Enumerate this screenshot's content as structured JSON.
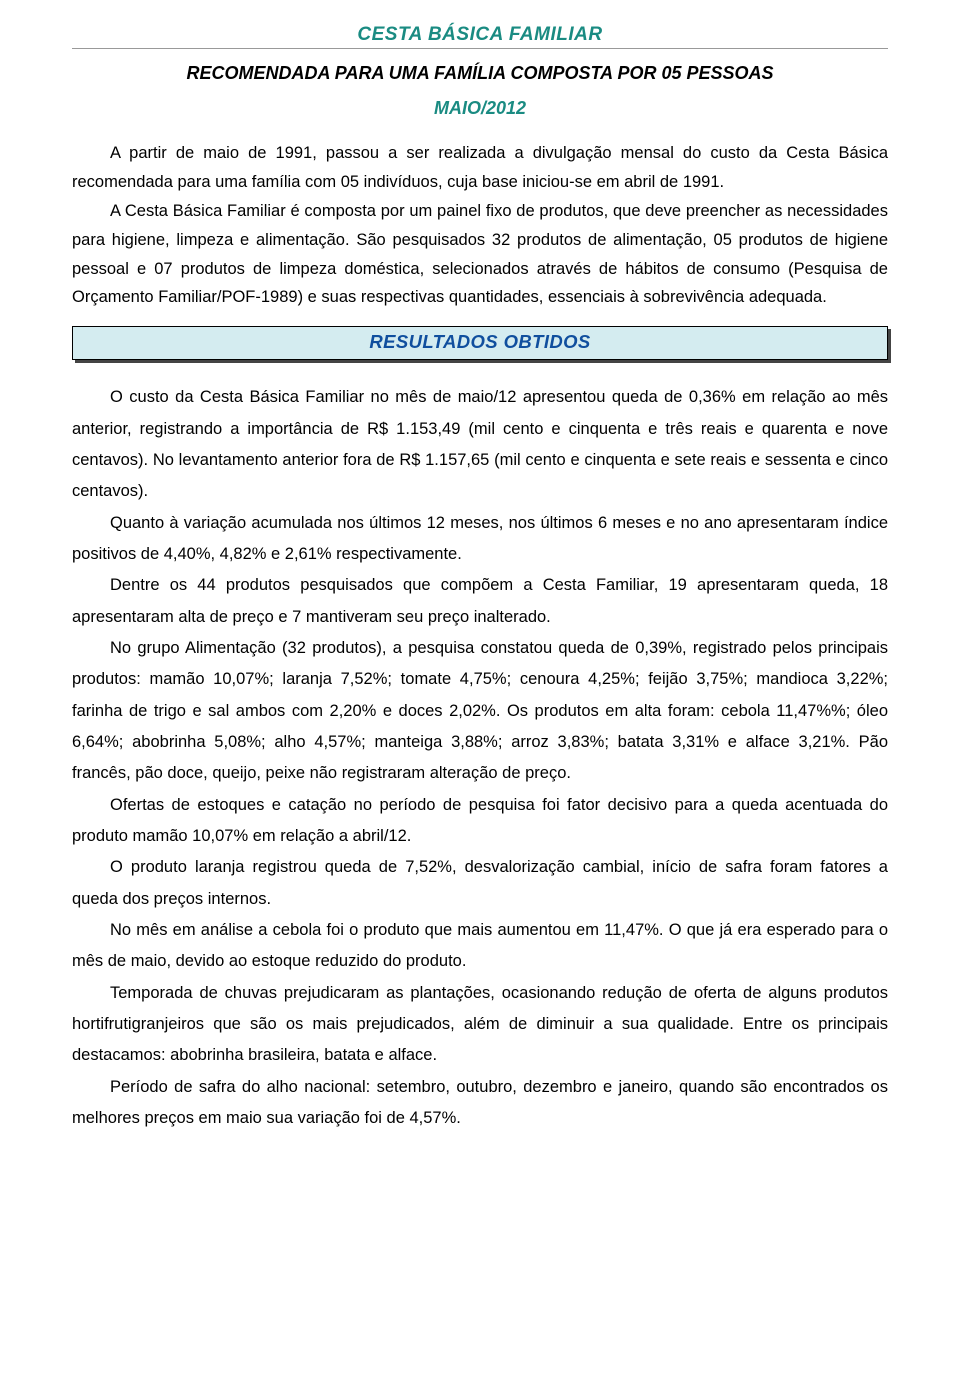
{
  "colors": {
    "teal": "#1a8b82",
    "headerBg": "#d4ecf0",
    "headerText": "#104f9e",
    "bodyText": "#000000",
    "background": "#ffffff",
    "shadow": "#444444"
  },
  "fonts": {
    "body_size_pt": 12,
    "title_size_pt": 14,
    "line_height": 1.9
  },
  "header": {
    "title": "CESTA BÁSICA FAMILIAR",
    "subtitle": "RECOMENDADA PARA UMA FAMÍLIA COMPOSTA POR 05 PESSOAS",
    "month": "MAIO/2012"
  },
  "intro": {
    "p1": "A partir de maio de 1991, passou a ser realizada a divulgação mensal do custo da Cesta Básica recomendada para uma família com 05 indivíduos, cuja base iniciou-se em abril de 1991.",
    "p2": "A Cesta Básica Familiar é composta por um painel fixo de produtos, que deve preencher as necessidades para higiene, limpeza e alimentação. São pesquisados 32 produtos de alimentação, 05 produtos de higiene pessoal e 07 produtos de limpeza doméstica, selecionados através de hábitos de consumo (Pesquisa de Orçamento Familiar/POF-1989) e suas respectivas quantidades, essenciais à sobrevivência adequada."
  },
  "results_header": "RESULTADOS OBTIDOS",
  "body": {
    "p1": "O custo da Cesta Básica Familiar no mês de maio/12 apresentou queda de 0,36% em relação ao mês anterior, registrando a importância de R$ 1.153,49 (mil cento e cinquenta e três reais e quarenta e nove centavos). No levantamento anterior fora de R$ 1.157,65 (mil cento e cinquenta e sete reais e sessenta e cinco centavos).",
    "p2": "Quanto à variação acumulada nos últimos 12 meses, nos últimos 6 meses e no ano apresentaram índice positivos de 4,40%, 4,82% e 2,61% respectivamente.",
    "p3": "Dentre os 44 produtos pesquisados que compõem a Cesta Familiar, 19 apresentaram queda, 18 apresentaram alta de preço e 7 mantiveram seu preço inalterado.",
    "p4": "No grupo Alimentação (32 produtos), a pesquisa constatou queda de 0,39%, registrado pelos principais produtos: mamão 10,07%; laranja 7,52%; tomate 4,75%; cenoura 4,25%; feijão 3,75%; mandioca 3,22%; farinha de trigo e sal ambos com  2,20% e doces 2,02%. Os produtos em alta foram: cebola 11,47%%; óleo 6,64%; abobrinha 5,08%; alho 4,57%; manteiga 3,88%; arroz 3,83%; batata 3,31% e alface 3,21%. Pão francês, pão doce, queijo, peixe não registraram alteração de preço.",
    "p5": "Ofertas de estoques e catação no período de pesquisa foi fator decisivo para a queda acentuada do produto mamão 10,07% em relação a abril/12.",
    "p6": "O produto laranja registrou queda de 7,52%, desvalorização cambial, início de safra foram fatores a queda dos preços internos.",
    "p7": "No mês em análise a cebola foi o produto que mais aumentou em 11,47%. O que já era esperado para o mês de maio, devido ao estoque reduzido do produto.",
    "p8": "Temporada de chuvas prejudicaram as plantações, ocasionando redução de oferta de alguns produtos hortifrutigranjeiros que são os mais prejudicados, além de diminuir a sua qualidade. Entre os principais destacamos: abobrinha brasileira, batata e alface.",
    "p9": "Período de safra do alho nacional: setembro, outubro, dezembro e janeiro, quando são encontrados os melhores preços em maio sua variação foi de 4,57%."
  }
}
